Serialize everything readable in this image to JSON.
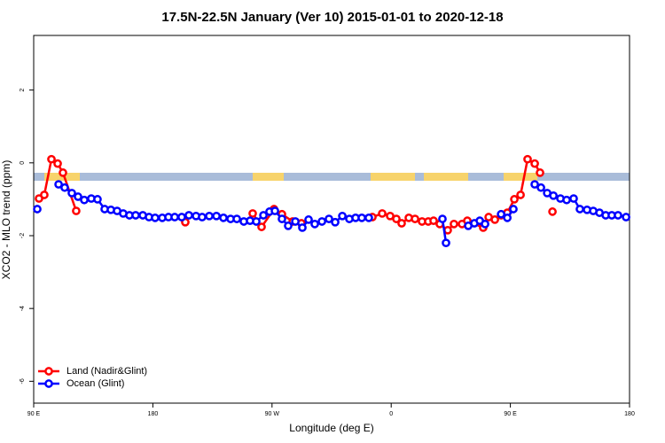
{
  "chart_data": {
    "type": "line",
    "title": "17.5N-22.5N January (Ver 10)   2015-01-01 to 2020-12-18",
    "x_label": "Longitude (deg E)",
    "y_label": "XCO2 - MLO trend (ppm)",
    "xlim": [
      90,
      540
    ],
    "ylim": [
      -6.6,
      3.5
    ],
    "xticks": [
      {
        "value": 90,
        "label": "90 E"
      },
      180,
      {
        "value": 270,
        "label": "90 W"
      },
      {
        "value": 360,
        "label": "0"
      },
      {
        "value": 450,
        "label": "90 E"
      },
      {
        "value": 540,
        "label": "180"
      }
    ],
    "yticks": [
      -6,
      -4,
      -2,
      0,
      2
    ],
    "legend": "bottom-left",
    "series": [
      {
        "name": "Land (Nadir&Glint)",
        "color": "#ff0000",
        "x": [
          94.0,
          98.0,
          103.4,
          108.1,
          112.1,
          122.1,
          null,
          204.5,
          null,
          255.4,
          262.1,
          271.5,
          277.5,
          285.6,
          292.2,
          null,
          345.8,
          353.2,
          359.2,
          363.9,
          367.9,
          373.3,
          378.0,
          383.3,
          388.0,
          392.0,
          396.7,
          402.7,
          407.4,
          413.5,
          417.5,
          429.5,
          433.6,
          438.3,
          443.0,
          447.7,
          453.0,
          457.7,
          463.0,
          468.4,
          472.4,
          null,
          481.8
        ],
        "values": [
          -0.98,
          -0.88,
          0.1,
          -0.02,
          -0.27,
          -1.32,
          null,
          -1.63,
          null,
          -1.39,
          -1.76,
          -1.27,
          -1.41,
          -1.61,
          -1.66,
          null,
          -1.49,
          -1.39,
          -1.46,
          -1.54,
          -1.66,
          -1.51,
          -1.54,
          -1.61,
          -1.61,
          -1.59,
          -1.68,
          -1.85,
          -1.68,
          -1.68,
          -1.59,
          -1.78,
          -1.49,
          -1.56,
          -1.44,
          -1.37,
          -1.0,
          -0.88,
          0.1,
          -0.02,
          -0.27,
          null,
          -1.34
        ]
      },
      {
        "name": "Ocean (Glint)",
        "color": "#0000ff",
        "x": [
          92.7,
          null,
          108.8,
          113.4,
          118.8,
          123.5,
          128.2,
          133.5,
          138.2,
          143.6,
          148.3,
          153.0,
          157.6,
          162.3,
          167.0,
          172.4,
          177.1,
          181.7,
          187.1,
          191.8,
          196.5,
          201.8,
          207.2,
          212.6,
          217.2,
          222.6,
          228.0,
          233.3,
          238.7,
          243.4,
          248.7,
          253.4,
          258.1,
          263.5,
          268.1,
          272.2,
          277.5,
          282.2,
          287.6,
          292.9,
          297.6,
          302.3,
          307.7,
          313.0,
          317.7,
          323.1,
          328.4,
          333.1,
          337.8,
          343.1,
          null,
          398.7,
          401.4,
          null,
          418.2,
          422.8,
          426.9,
          430.9,
          null,
          443.0,
          447.7,
          452.3,
          null,
          468.4,
          473.1,
          477.8,
          482.5,
          487.8,
          492.5,
          497.8,
          502.5,
          507.9,
          512.6,
          517.3,
          522.0,
          526.6,
          531.3,
          537.4
        ],
        "values": [
          -1.27,
          null,
          -0.59,
          -0.68,
          -0.83,
          -0.93,
          -1.02,
          -0.98,
          -1.0,
          -1.27,
          -1.29,
          -1.32,
          -1.39,
          -1.44,
          -1.44,
          -1.44,
          -1.49,
          -1.51,
          -1.51,
          -1.49,
          -1.49,
          -1.49,
          -1.44,
          -1.46,
          -1.49,
          -1.46,
          -1.46,
          -1.51,
          -1.54,
          -1.54,
          -1.61,
          -1.59,
          -1.61,
          -1.44,
          -1.34,
          -1.32,
          -1.54,
          -1.73,
          -1.61,
          -1.78,
          -1.56,
          -1.68,
          -1.61,
          -1.54,
          -1.63,
          -1.46,
          -1.54,
          -1.51,
          -1.51,
          -1.51,
          null,
          -1.54,
          -2.2,
          null,
          -1.73,
          -1.66,
          -1.59,
          -1.68,
          null,
          -1.41,
          -1.51,
          -1.27,
          null,
          -0.59,
          -0.68,
          -0.83,
          -0.9,
          -0.98,
          -1.02,
          -0.98,
          -1.27,
          -1.29,
          -1.32,
          -1.37,
          -1.44,
          -1.44,
          -1.44,
          -1.49
        ]
      }
    ]
  }
}
